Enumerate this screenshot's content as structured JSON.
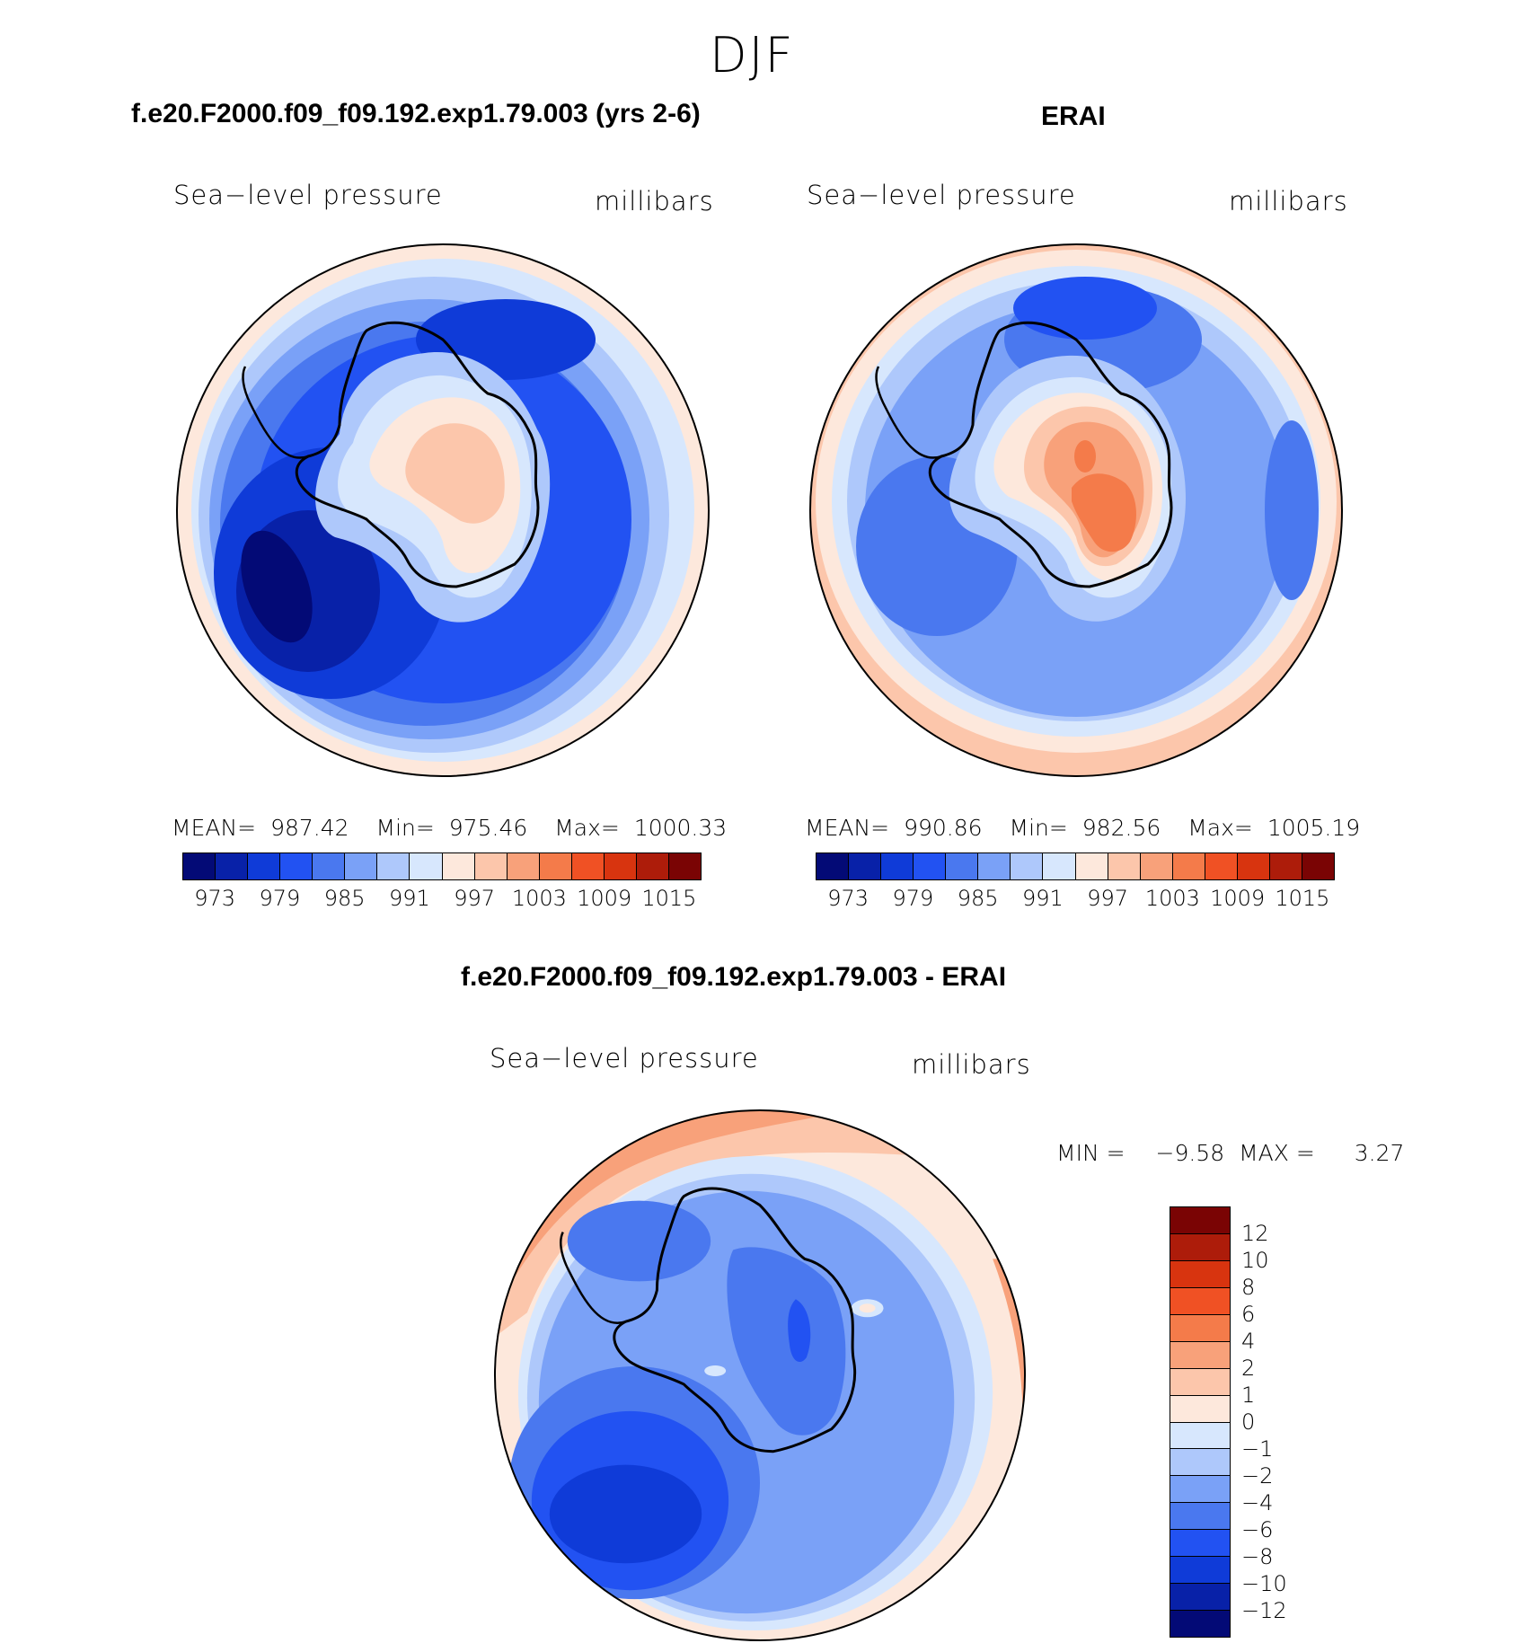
{
  "figure_title": "DJF",
  "panels": {
    "model": {
      "title": "f.e20.F2000.f09_f09.192.exp1.79.003 (yrs 2-6)",
      "variable": "Sea−level pressure",
      "units": "millibars",
      "mean_label": "MEAN=",
      "mean_value": "987.42",
      "min_label": "Min=",
      "min_value": "975.46",
      "max_label": "Max=",
      "max_value": "1000.33"
    },
    "obs": {
      "title": "ERAI",
      "variable": "Sea−level pressure",
      "units": "millibars",
      "mean_label": "MEAN=",
      "mean_value": "990.86",
      "min_label": "Min=",
      "min_value": "982.56",
      "max_label": "Max=",
      "max_value": "1005.19"
    },
    "diff": {
      "title": "f.e20.F2000.f09_f09.192.exp1.79.003 - ERAI",
      "variable": "Sea−level pressure",
      "units": "millibars",
      "min_label": "MIN =",
      "min_value": "−9.58",
      "max_label": "MAX =",
      "max_value": "3.27"
    }
  },
  "colorbar_abs": {
    "colors": [
      "#030a76",
      "#0821a8",
      "#0f3bd8",
      "#2252f2",
      "#4a78ef",
      "#7aa1f7",
      "#aec8fb",
      "#d7e7fd",
      "#fde8dc",
      "#fcc6ab",
      "#f8a17a",
      "#f47b4a",
      "#f05124",
      "#d8340f",
      "#ad1c0a",
      "#7a0404"
    ],
    "ticks": [
      "973",
      "979",
      "985",
      "991",
      "997",
      "1003",
      "1009",
      "1015"
    ]
  },
  "colorbar_diff": {
    "colors": [
      "#7a0404",
      "#ad1c0a",
      "#d8340f",
      "#f05124",
      "#f47b4a",
      "#f8a17a",
      "#fcc6ab",
      "#fde8dc",
      "#d7e7fd",
      "#aec8fb",
      "#7aa1f7",
      "#4a78ef",
      "#2252f2",
      "#0f3bd8",
      "#0821a8",
      "#030a76"
    ],
    "ticks": [
      "12",
      "10",
      "8",
      "6",
      "4",
      "2",
      "1",
      "0",
      "−1",
      "−2",
      "−4",
      "−6",
      "−8",
      "−10",
      "−12"
    ]
  }
}
